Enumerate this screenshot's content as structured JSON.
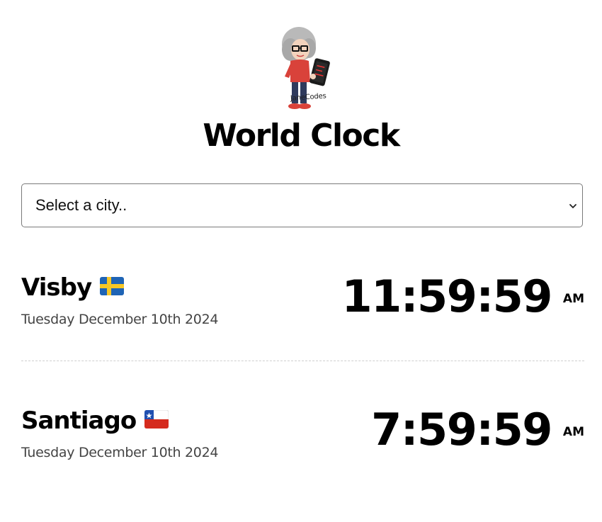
{
  "header": {
    "logo_text": "JaneCodes",
    "title": "World Clock"
  },
  "city_select": {
    "selected": "Select a city.."
  },
  "cities": [
    {
      "name": "Visby",
      "flag": "sweden-flag-icon",
      "date": "Tuesday December 10th 2024",
      "time": "11:59:59",
      "ampm": "AM"
    },
    {
      "name": "Santiago",
      "flag": "chile-flag-icon",
      "date": "Tuesday December 10th 2024",
      "time": "7:59:59",
      "ampm": "AM"
    }
  ],
  "colors": {
    "text": "#000000",
    "date_text": "#444444",
    "divider": "#cfcfcf",
    "select_border": "#7a7a7a"
  }
}
